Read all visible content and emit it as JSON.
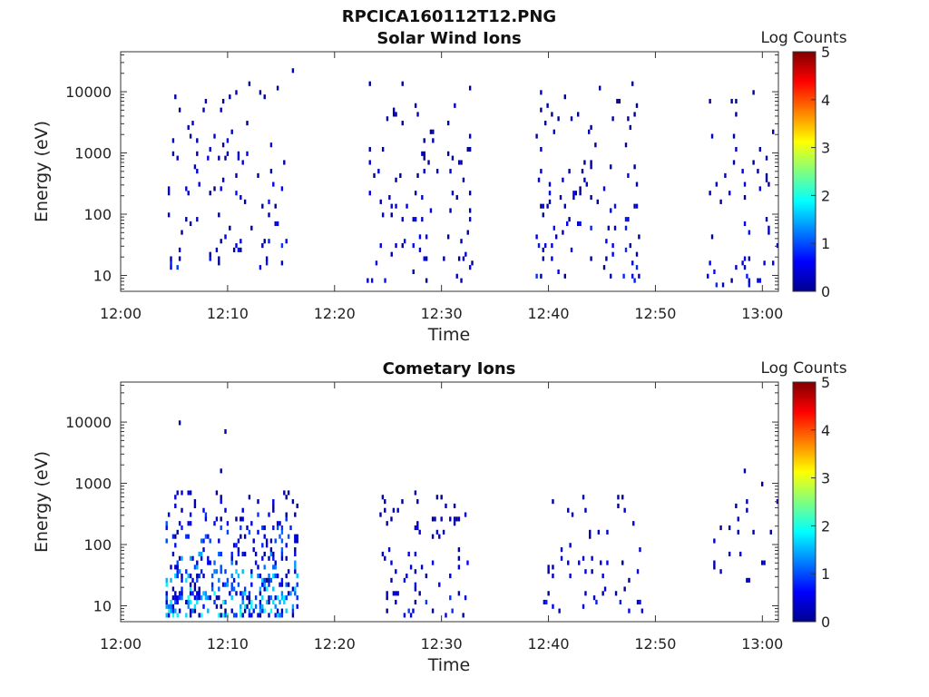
{
  "figure": {
    "title": "RPCICA160112T12.PNG"
  },
  "chart_data": [
    {
      "type": "heatmap",
      "title": "Solar Wind Ions",
      "xlabel": "Time",
      "ylabel": "Energy (eV)",
      "x_ticks": [
        "12:00",
        "12:10",
        "12:20",
        "12:30",
        "12:40",
        "12:50",
        "13:00"
      ],
      "y_ticks": [
        "10",
        "100",
        "1000",
        "10000"
      ],
      "y_scale": "log",
      "xlim_minutes": [
        0,
        61.5
      ],
      "ylim": [
        5.5,
        45000
      ],
      "colorbar": {
        "label": "Log Counts",
        "range": [
          0,
          5
        ],
        "ticks": [
          "0",
          "1",
          "2",
          "3",
          "4",
          "5"
        ],
        "colormap": "jet"
      },
      "clusters": [
        {
          "t_start": 4.2,
          "t_end": 16.2,
          "e_min": 12,
          "e_max": 26000,
          "density": 0.05,
          "peak": 0.7
        },
        {
          "t_start": 23.0,
          "t_end": 32.8,
          "e_min": 8,
          "e_max": 16000,
          "density": 0.05,
          "peak": 0.6
        },
        {
          "t_start": 38.8,
          "t_end": 48.5,
          "e_min": 8,
          "e_max": 15000,
          "density": 0.06,
          "peak": 0.7
        },
        {
          "t_start": 54.8,
          "t_end": 61.5,
          "e_min": 7,
          "e_max": 15000,
          "density": 0.05,
          "peak": 0.6
        }
      ]
    },
    {
      "type": "heatmap",
      "title": "Cometary Ions",
      "xlabel": "Time",
      "ylabel": "Energy (eV)",
      "x_ticks": [
        "12:00",
        "12:10",
        "12:20",
        "12:30",
        "12:40",
        "12:50",
        "13:00"
      ],
      "y_ticks": [
        "10",
        "100",
        "1000",
        "10000"
      ],
      "y_scale": "log",
      "xlim_minutes": [
        0,
        61.5
      ],
      "ylim": [
        5.5,
        45000
      ],
      "colorbar": {
        "label": "Log Counts",
        "range": [
          0,
          5
        ],
        "ticks": [
          "0",
          "1",
          "2",
          "3",
          "4",
          "5"
        ],
        "colormap": "jet"
      },
      "clusters": [
        {
          "t_start": 4.2,
          "t_end": 16.5,
          "e_min": 7,
          "e_max": 800,
          "density": 0.16,
          "peak": 1.6
        },
        {
          "t_start": 4.2,
          "t_end": 12.0,
          "e_min": 700,
          "e_max": 14000,
          "density": 0.015,
          "peak": 0.5
        },
        {
          "t_start": 24.2,
          "t_end": 32.5,
          "e_min": 7,
          "e_max": 900,
          "density": 0.08,
          "peak": 0.7
        },
        {
          "t_start": 39.5,
          "t_end": 48.8,
          "e_min": 8,
          "e_max": 1100,
          "density": 0.05,
          "peak": 0.6
        },
        {
          "t_start": 55.0,
          "t_end": 61.5,
          "e_min": 25,
          "e_max": 2500,
          "density": 0.04,
          "peak": 0.5
        }
      ]
    }
  ]
}
